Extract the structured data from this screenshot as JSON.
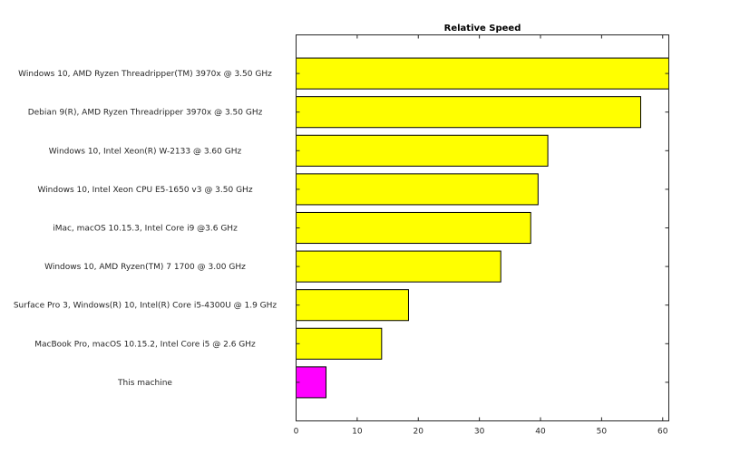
{
  "chart_data": {
    "type": "bar",
    "orientation": "horizontal",
    "title": "Relative Speed",
    "xlabel": "",
    "ylabel": "",
    "xlim": [
      0,
      61
    ],
    "xticks": [
      0,
      10,
      20,
      30,
      40,
      50,
      60
    ],
    "grid": false,
    "categories": [
      "Windows 10, AMD Ryzen Threadripper(TM) 3970x @ 3.50 GHz",
      "Debian 9(R), AMD Ryzen Threadripper 3970x @ 3.50 GHz",
      "Windows 10, Intel Xeon(R) W-2133 @ 3.60 GHz",
      "Windows 10, Intel Xeon CPU E5-1650 v3 @ 3.50 GHz",
      "iMac, macOS 10.15.3, Intel Core i9 @3.6 GHz",
      "Windows 10, AMD Ryzen(TM) 7 1700 @ 3.00 GHz",
      "Surface Pro 3, Windows(R) 10, Intel(R) Core i5-4300U @ 1.9 GHz",
      "MacBook Pro, macOS 10.15.2, Intel Core i5 @ 2.6 GHz",
      "This machine"
    ],
    "values": [
      61.0,
      56.4,
      41.2,
      39.6,
      38.4,
      33.5,
      18.4,
      14.0,
      4.9
    ],
    "colors": [
      "#ffff00",
      "#ffff00",
      "#ffff00",
      "#ffff00",
      "#ffff00",
      "#ffff00",
      "#ffff00",
      "#ffff00",
      "#ff00ff"
    ]
  }
}
